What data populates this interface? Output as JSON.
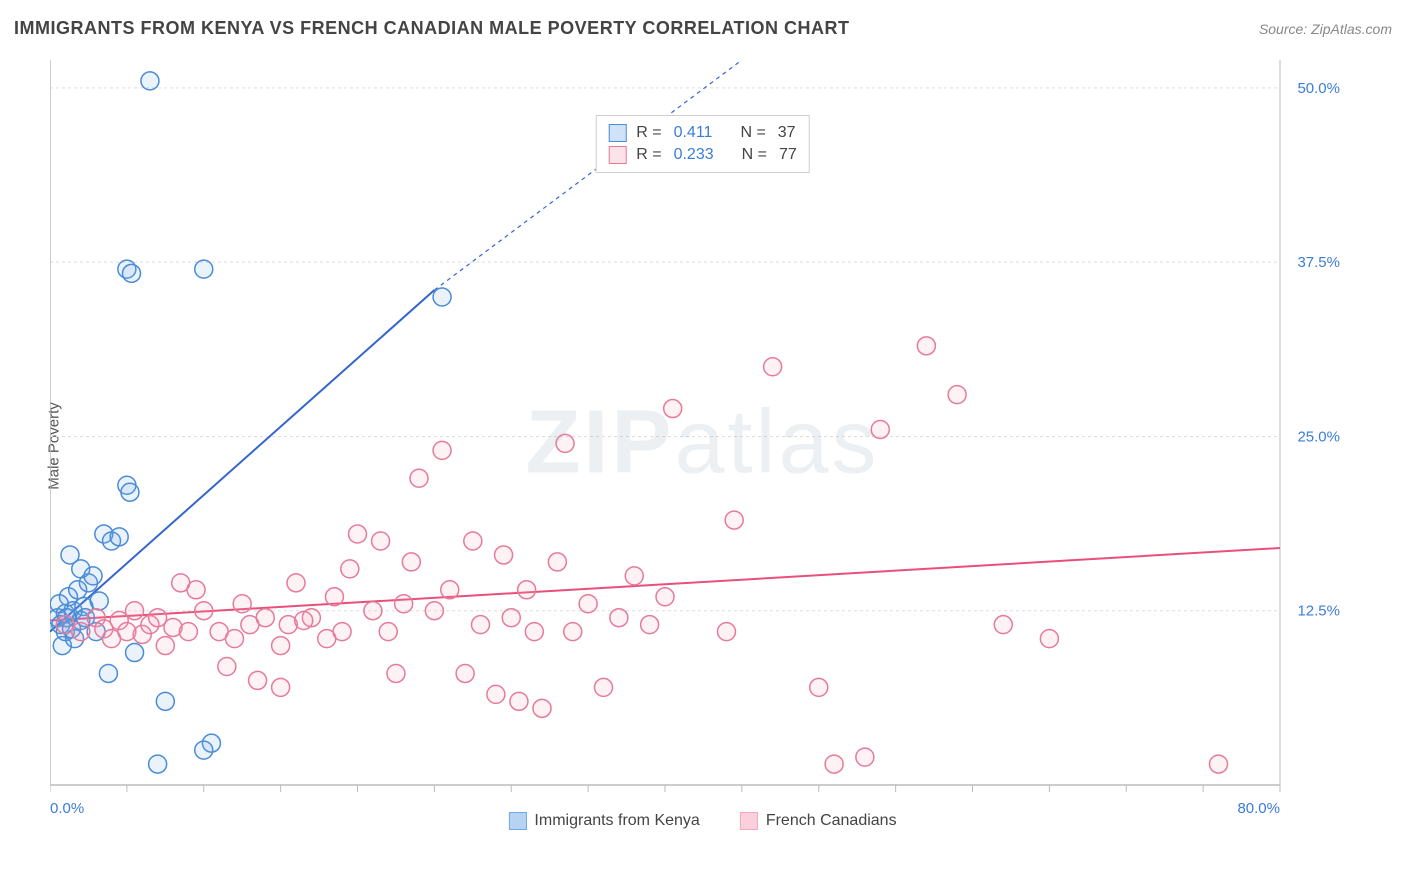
{
  "title": "IMMIGRANTS FROM KENYA VS FRENCH CANADIAN MALE POVERTY CORRELATION CHART",
  "source": "Source: ZipAtlas.com",
  "y_axis_label": "Male Poverty",
  "watermark_a": "ZIP",
  "watermark_b": "atlas",
  "chart": {
    "type": "scatter",
    "xlim": [
      0,
      80
    ],
    "ylim": [
      0,
      52
    ],
    "x_ticks_major": [
      0,
      80
    ],
    "x_ticks_minor_step": 5,
    "y_ticks": [
      12.5,
      25.0,
      37.5,
      50.0
    ],
    "x_tick_labels": [
      "0.0%",
      "80.0%"
    ],
    "y_tick_labels": [
      "12.5%",
      "25.0%",
      "37.5%",
      "50.0%"
    ],
    "grid_color": "#dddddd",
    "grid_dash": "3,3",
    "axis_color": "#bbbbbb",
    "background_color": "#ffffff",
    "tick_label_color": "#3b7dd8",
    "tick_label_fontsize": 15,
    "marker_radius": 9,
    "marker_stroke_width": 1.5,
    "marker_fill_opacity": 0.15,
    "trend_line_width": 2,
    "trend_dash": "4,4"
  },
  "series": [
    {
      "name": "Immigrants from Kenya",
      "color": "#6fa8e8",
      "stroke": "#4a8cd6",
      "line_color": "#3366cc",
      "r_label": "R =",
      "r_value": "0.411",
      "n_label": "N =",
      "n_value": "37",
      "trend": {
        "x1": 0,
        "y1": 11.0,
        "x2": 25,
        "y2": 35.5,
        "x2_dash": 45,
        "y2_dash": 52
      },
      "points": [
        [
          0.5,
          12.0
        ],
        [
          0.7,
          11.5
        ],
        [
          1.0,
          12.3
        ],
        [
          1.2,
          13.5
        ],
        [
          1.5,
          12.5
        ],
        [
          1.8,
          14.0
        ],
        [
          2.0,
          15.5
        ],
        [
          0.8,
          10.0
        ],
        [
          1.0,
          11.0
        ],
        [
          2.2,
          12.8
        ],
        [
          2.5,
          14.5
        ],
        [
          3.0,
          11.0
        ],
        [
          3.2,
          13.2
        ],
        [
          3.5,
          18.0
        ],
        [
          4.0,
          17.5
        ],
        [
          4.5,
          17.8
        ],
        [
          5.0,
          21.5
        ],
        [
          5.2,
          21.0
        ],
        [
          7.0,
          1.5
        ],
        [
          7.5,
          6.0
        ],
        [
          10.5,
          3.0
        ],
        [
          10.0,
          2.5
        ],
        [
          5.5,
          9.5
        ],
        [
          3.8,
          8.0
        ],
        [
          2.8,
          15.0
        ],
        [
          1.3,
          16.5
        ],
        [
          2.0,
          11.8
        ],
        [
          0.6,
          13.0
        ],
        [
          1.1,
          12.0
        ],
        [
          1.4,
          11.2
        ],
        [
          5.0,
          37.0
        ],
        [
          5.3,
          36.7
        ],
        [
          10.0,
          37.0
        ],
        [
          6.5,
          50.5
        ],
        [
          25.5,
          35.0
        ],
        [
          1.6,
          10.5
        ],
        [
          2.3,
          12.0
        ]
      ]
    },
    {
      "name": "French Canadians",
      "color": "#f5a8bd",
      "stroke": "#e77a9a",
      "line_color": "#e94f7a",
      "r_label": "R =",
      "r_value": "0.233",
      "n_label": "N =",
      "n_value": "77",
      "trend": {
        "x1": 0,
        "y1": 11.8,
        "x2": 80,
        "y2": 17.0
      },
      "points": [
        [
          1.0,
          11.5
        ],
        [
          2.0,
          11.0
        ],
        [
          3.0,
          12.0
        ],
        [
          3.5,
          11.2
        ],
        [
          4.0,
          10.5
        ],
        [
          4.5,
          11.8
        ],
        [
          5.0,
          11.0
        ],
        [
          5.5,
          12.5
        ],
        [
          6.0,
          10.8
        ],
        [
          6.5,
          11.5
        ],
        [
          7.0,
          12.0
        ],
        [
          7.5,
          10.0
        ],
        [
          8.0,
          11.3
        ],
        [
          8.5,
          14.5
        ],
        [
          9.0,
          11.0
        ],
        [
          9.5,
          14.0
        ],
        [
          10.0,
          12.5
        ],
        [
          11.0,
          11.0
        ],
        [
          12.0,
          10.5
        ],
        [
          12.5,
          13.0
        ],
        [
          13.0,
          11.5
        ],
        [
          13.5,
          7.5
        ],
        [
          14.0,
          12.0
        ],
        [
          15.0,
          10.0
        ],
        [
          15.5,
          11.5
        ],
        [
          16.0,
          14.5
        ],
        [
          17.0,
          12.0
        ],
        [
          18.0,
          10.5
        ],
        [
          18.5,
          13.5
        ],
        [
          19.0,
          11.0
        ],
        [
          20.0,
          18.0
        ],
        [
          21.0,
          12.5
        ],
        [
          21.5,
          17.5
        ],
        [
          22.0,
          11.0
        ],
        [
          23.0,
          13.0
        ],
        [
          23.5,
          16.0
        ],
        [
          24.0,
          22.0
        ],
        [
          25.0,
          12.5
        ],
        [
          25.5,
          24.0
        ],
        [
          26.0,
          14.0
        ],
        [
          27.0,
          8.0
        ],
        [
          27.5,
          17.5
        ],
        [
          28.0,
          11.5
        ],
        [
          29.0,
          6.5
        ],
        [
          29.5,
          16.5
        ],
        [
          30.0,
          12.0
        ],
        [
          30.5,
          6.0
        ],
        [
          31.0,
          14.0
        ],
        [
          32.0,
          5.5
        ],
        [
          33.0,
          16.0
        ],
        [
          33.5,
          24.5
        ],
        [
          34.0,
          11.0
        ],
        [
          35.0,
          13.0
        ],
        [
          36.0,
          7.0
        ],
        [
          37.0,
          12.0
        ],
        [
          38.0,
          15.0
        ],
        [
          39.0,
          11.5
        ],
        [
          40.0,
          13.5
        ],
        [
          40.5,
          27.0
        ],
        [
          44.0,
          11.0
        ],
        [
          44.5,
          19.0
        ],
        [
          47.0,
          30.0
        ],
        [
          50.0,
          7.0
        ],
        [
          51.0,
          1.5
        ],
        [
          53.0,
          2.0
        ],
        [
          54.0,
          25.5
        ],
        [
          57.0,
          31.5
        ],
        [
          59.0,
          28.0
        ],
        [
          62.0,
          11.5
        ],
        [
          65.0,
          10.5
        ],
        [
          76.0,
          1.5
        ],
        [
          15.0,
          7.0
        ],
        [
          11.5,
          8.5
        ],
        [
          22.5,
          8.0
        ],
        [
          19.5,
          15.5
        ],
        [
          16.5,
          11.8
        ],
        [
          31.5,
          11.0
        ]
      ]
    }
  ],
  "legend_bottom": [
    {
      "swatch_fill": "#b7d3f1",
      "swatch_stroke": "#6fa8e8",
      "label": "Immigrants from Kenya"
    },
    {
      "swatch_fill": "#f9d0dc",
      "swatch_stroke": "#f5a8bd",
      "label": "French Canadians"
    }
  ]
}
